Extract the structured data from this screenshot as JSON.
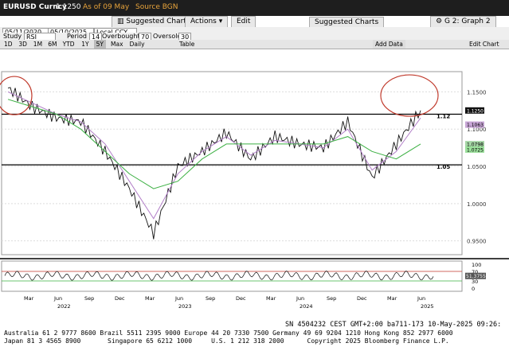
{
  "header": {
    "ticker": "EURUSD Curncy",
    "price": "1.1250",
    "asof": "As of 09 May",
    "source": "Source BGN",
    "suggested_label": "Suggested Charts",
    "actions_label": "Actions",
    "edit_label": "Edit",
    "graph_label": "G 2: Graph 2",
    "colors": {
      "bg": "#1e1e1e",
      "accent": "#e7a33b"
    }
  },
  "controls": {
    "start_date": "05/11/2020",
    "end_date": "05/10/2025",
    "currency": "Local CCY",
    "study_label": "Study",
    "study_value": "RSI",
    "period_label": "Period",
    "period_value": "14",
    "overbought_label": "Overbought",
    "overbought_value": "70",
    "oversold_label": "Oversold",
    "oversold_value": "30"
  },
  "ranges": [
    "1D",
    "3D",
    "1M",
    "6M",
    "YTD",
    "1Y",
    "5Y",
    "Max",
    "Daily"
  ],
  "selected_range": "5Y",
  "table_label": "Table",
  "add_data_label": "Add Data",
  "edit_chart_label": "Edit Chart",
  "chart_data": {
    "type": "line",
    "title": "",
    "x_labels": [
      "Mar",
      "Jun",
      "Sep",
      "Dec",
      "Mar",
      "Jun",
      "Sep",
      "Dec",
      "Mar",
      "Jun",
      "Sep",
      "Dec",
      "Mar",
      "Jun"
    ],
    "year_labels": [
      "2022",
      "2023",
      "2024",
      "2025"
    ],
    "y_ticks": [
      "1.1500",
      "1.1000",
      "1.0500",
      "1.0000",
      "0.9500"
    ],
    "ylim": [
      0.94,
      1.175
    ],
    "price_series": {
      "name": "EURUSD",
      "x": [
        "2021-03",
        "2021-06",
        "2021-09",
        "2021-12",
        "2022-03",
        "2022-06",
        "2022-09",
        "2022-12",
        "2023-03",
        "2023-06",
        "2023-09",
        "2023-12",
        "2024-03",
        "2024-06",
        "2024-09",
        "2024-12",
        "2025-03",
        "2025-05"
      ],
      "y": [
        1.155,
        1.13,
        1.115,
        1.11,
        1.07,
        1.02,
        0.96,
        1.05,
        1.07,
        1.095,
        1.06,
        1.09,
        1.08,
        1.075,
        1.11,
        1.035,
        1.08,
        1.125
      ]
    },
    "ma_short": {
      "values": [
        1.15,
        1.135,
        1.12,
        1.11,
        1.08,
        1.03,
        0.98,
        1.04,
        1.07,
        1.09,
        1.065,
        1.085,
        1.08,
        1.075,
        1.1,
        1.045,
        1.07,
        1.115
      ]
    },
    "ma_long": {
      "values": [
        1.14,
        1.13,
        1.12,
        1.1,
        1.07,
        1.04,
        1.02,
        1.03,
        1.06,
        1.08,
        1.08,
        1.08,
        1.08,
        1.08,
        1.09,
        1.07,
        1.06,
        1.08
      ]
    },
    "hlines": [
      {
        "label": "1.12",
        "y": 1.12
      },
      {
        "label": "1.05",
        "y": 1.052
      }
    ],
    "price_tags": [
      {
        "label": "1.1250",
        "color": "#111111",
        "text": "#ffffff"
      },
      {
        "label": "1.1063",
        "color": "#c8a6d6",
        "text": "#000000"
      },
      {
        "label": "1.0798",
        "color": "#a6d6a6",
        "text": "#000000"
      },
      {
        "label": "1.0725",
        "color": "#9be09b",
        "text": "#000000"
      }
    ],
    "rsi": {
      "name": "RSI",
      "value_label": "51.3755",
      "ticks": [
        "100",
        "70",
        "30",
        "0"
      ],
      "level_over": 70,
      "level_under": 30
    }
  },
  "footer": {
    "line1": "SN 4504232 CEST GMT+2:00 ba711-173 10-May-2025 09:26:",
    "line2": "Australia 61 2 9777 8600 Brazil 5511 2395 9000 Europe 44 20 7330 7500 Germany 49 69 9204 1210 Hong Kong 852 2977 6000",
    "line3": "Japan 81 3 4565 8900       Singapore 65 6212 1000     U.S. 1 212 318 2000      Copyright 2025 Bloomberg Finance L.P."
  }
}
